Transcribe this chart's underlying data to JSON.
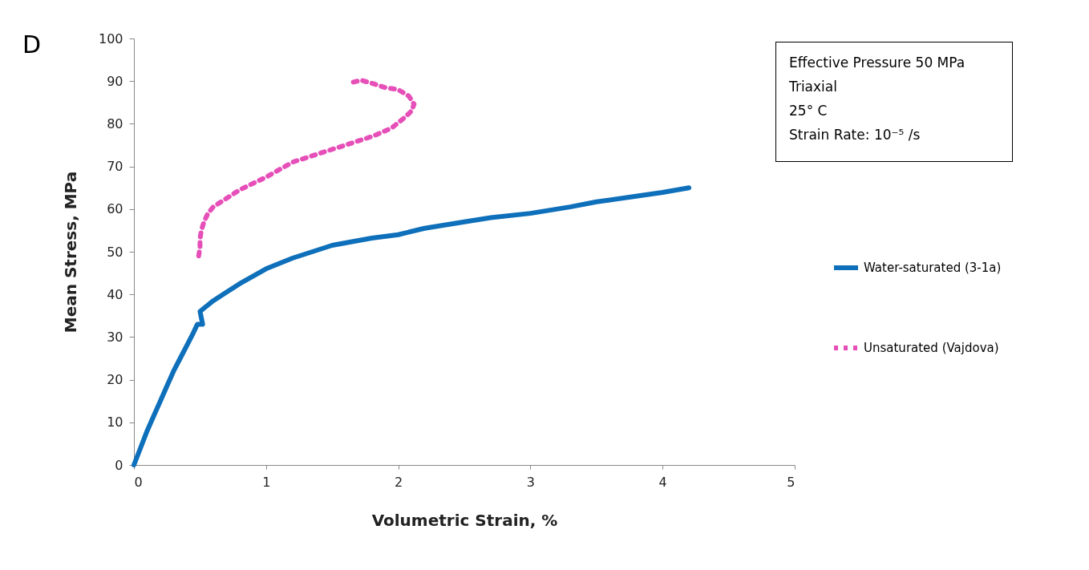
{
  "chart_data": {
    "type": "line",
    "xlabel": "Volumetric Strain, %",
    "ylabel": "Mean Stress, MPa",
    "annotations": [
      "D",
      "Effective Pressure 50 MPa",
      "Triaxial",
      "25° C",
      "Strain Rate: 10⁻⁵ /s"
    ],
    "xlim": [
      0,
      5
    ],
    "xticks": [
      0,
      1,
      2,
      3,
      4,
      5
    ],
    "ylim": [
      0,
      100
    ],
    "yticks": [
      0,
      10,
      20,
      30,
      40,
      50,
      60,
      70,
      80,
      90,
      100
    ],
    "grid": false,
    "legend": "right",
    "series": [
      {
        "name": "Water-saturated (3-1a)",
        "color": "#0e6fba",
        "line_style": "solid",
        "x": [
          0,
          0.05,
          0.1,
          0.15,
          0.2,
          0.25,
          0.3,
          0.35,
          0.4,
          0.45,
          0.48,
          0.52,
          0.5,
          0.6,
          0.7,
          0.8,
          1,
          1.2,
          1.5,
          1.8,
          2,
          2.2,
          2.5,
          2.7,
          3,
          3.3,
          3.5,
          3.8,
          4,
          4.2
        ],
        "values": [
          0,
          4,
          8,
          11.5,
          15,
          18.5,
          22,
          25,
          28,
          31,
          33,
          33,
          36,
          38.5,
          40.5,
          42.5,
          46,
          48.5,
          51.5,
          53.2,
          54,
          55.5,
          57,
          58,
          59,
          60.5,
          61.7,
          63,
          63.9,
          65
        ]
      },
      {
        "name": "Unsaturated (Vajdova)",
        "color": "#e64fb8",
        "line_style": "dotted",
        "x": [
          0.49,
          0.5,
          0.5,
          0.51,
          0.53,
          0.56,
          0.6,
          0.7,
          0.8,
          1,
          1.2,
          1.4,
          1.6,
          1.8,
          1.95,
          2.05,
          2.1,
          2.12,
          2.08,
          2,
          1.9,
          1.8,
          1.72,
          1.65
        ],
        "values": [
          49,
          51,
          53,
          55,
          57,
          59,
          60.5,
          62.5,
          64.5,
          67.5,
          71,
          73,
          75,
          77,
          79,
          81.5,
          83,
          84.6,
          86.5,
          88,
          88.5,
          89.5,
          90.2,
          89.7
        ]
      }
    ]
  }
}
